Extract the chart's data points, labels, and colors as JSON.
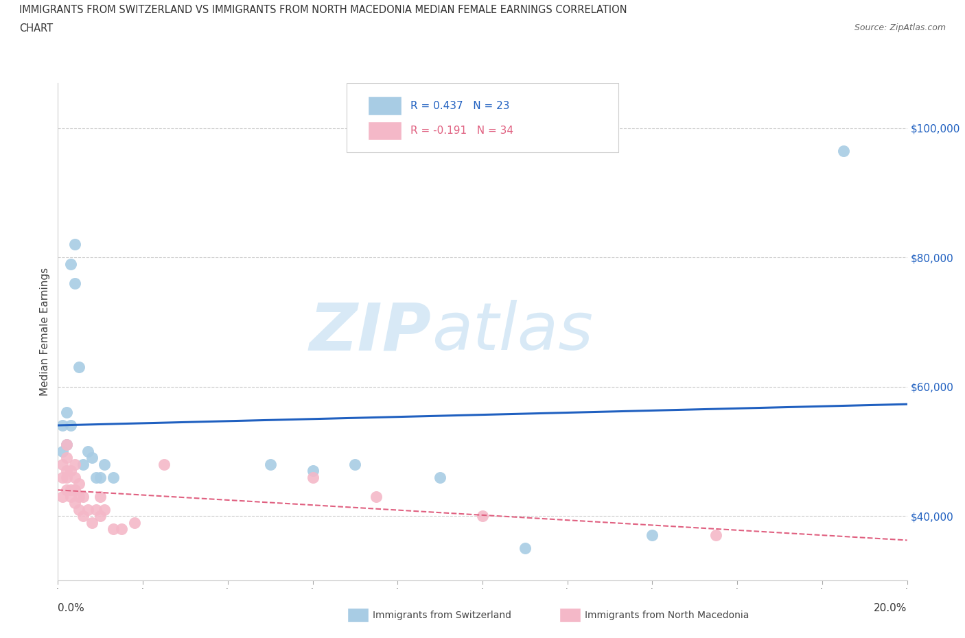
{
  "title_line1": "IMMIGRANTS FROM SWITZERLAND VS IMMIGRANTS FROM NORTH MACEDONIA MEDIAN FEMALE EARNINGS CORRELATION",
  "title_line2": "CHART",
  "source": "Source: ZipAtlas.com",
  "ylabel": "Median Female Earnings",
  "yticks": [
    40000,
    60000,
    80000,
    100000
  ],
  "ytick_labels": [
    "$40,000",
    "$60,000",
    "$80,000",
    "$100,000"
  ],
  "xlim": [
    0.0,
    0.2
  ],
  "ylim": [
    30000,
    107000
  ],
  "legend_r1": "R = 0.437   N = 23",
  "legend_r2": "R = -0.191   N = 34",
  "color_swiss": "#a8cce4",
  "color_mac": "#f4b8c8",
  "line_color_swiss": "#2060c0",
  "line_color_mac": "#e06080",
  "watermark_zip": "ZIP",
  "watermark_atlas": "atlas",
  "swiss_x": [
    0.001,
    0.001,
    0.002,
    0.002,
    0.003,
    0.003,
    0.004,
    0.004,
    0.005,
    0.006,
    0.007,
    0.008,
    0.009,
    0.01,
    0.011,
    0.013,
    0.05,
    0.06,
    0.07,
    0.09,
    0.11,
    0.14,
    0.185
  ],
  "swiss_y": [
    50000,
    54000,
    56000,
    51000,
    54000,
    79000,
    82000,
    76000,
    63000,
    48000,
    50000,
    49000,
    46000,
    46000,
    48000,
    46000,
    48000,
    47000,
    48000,
    46000,
    35000,
    37000,
    96500
  ],
  "mac_x": [
    0.001,
    0.001,
    0.001,
    0.002,
    0.002,
    0.002,
    0.002,
    0.002,
    0.003,
    0.003,
    0.003,
    0.004,
    0.004,
    0.004,
    0.004,
    0.005,
    0.005,
    0.005,
    0.006,
    0.006,
    0.007,
    0.008,
    0.009,
    0.01,
    0.01,
    0.011,
    0.013,
    0.015,
    0.018,
    0.025,
    0.06,
    0.075,
    0.1,
    0.155
  ],
  "mac_y": [
    43000,
    46000,
    48000,
    44000,
    46000,
    47000,
    49000,
    51000,
    43000,
    44000,
    47000,
    42000,
    44000,
    46000,
    48000,
    41000,
    43000,
    45000,
    40000,
    43000,
    41000,
    39000,
    41000,
    43000,
    40000,
    41000,
    38000,
    38000,
    39000,
    48000,
    46000,
    43000,
    40000,
    37000
  ]
}
